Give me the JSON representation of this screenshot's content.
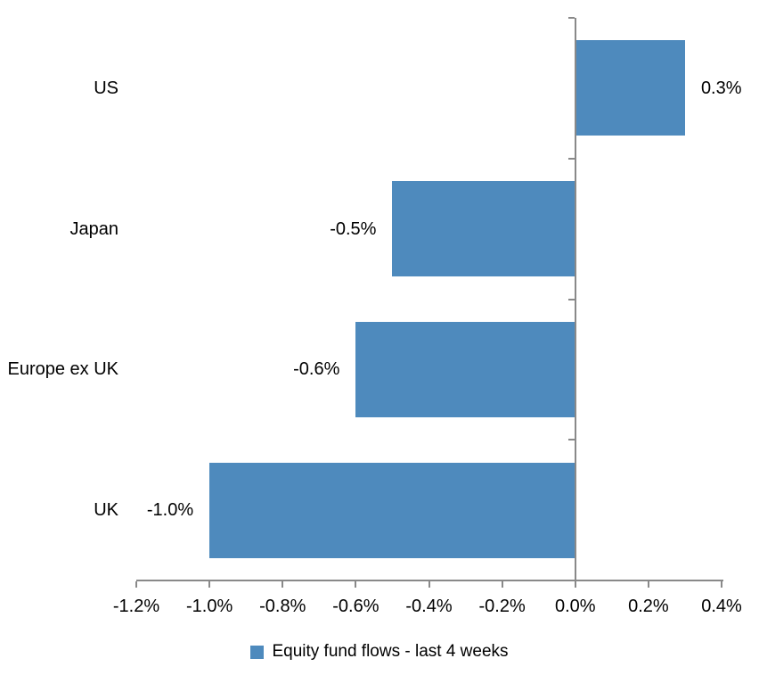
{
  "chart_data": {
    "type": "bar",
    "orientation": "horizontal",
    "title": "",
    "xlabel": "",
    "ylabel": "",
    "categories": [
      "US",
      "Japan",
      "Europe ex UK",
      "UK"
    ],
    "values": [
      0.3,
      -0.5,
      -0.6,
      -1.0
    ],
    "data_labels": [
      "0.3%",
      "-0.5%",
      "-0.6%",
      "-1.0%"
    ],
    "xlim": [
      -1.2,
      0.4
    ],
    "x_ticks": [
      -1.2,
      -1.0,
      -0.8,
      -0.6,
      -0.4,
      -0.2,
      0.0,
      0.2,
      0.4
    ],
    "x_tick_labels": [
      "-1.2%",
      "-1.0%",
      "-0.8%",
      "-0.6%",
      "-0.4%",
      "-0.2%",
      "0.0%",
      "0.2%",
      "0.4%"
    ],
    "grid": false,
    "legend_position": "bottom",
    "legend": [
      {
        "label": "Equity fund flows - last 4 weeks",
        "color": "#4E8ABD"
      }
    ],
    "colors": {
      "bar": "#4E8ABD",
      "axis": "#898989",
      "text": "#000000",
      "background": "#FFFFFF"
    }
  }
}
